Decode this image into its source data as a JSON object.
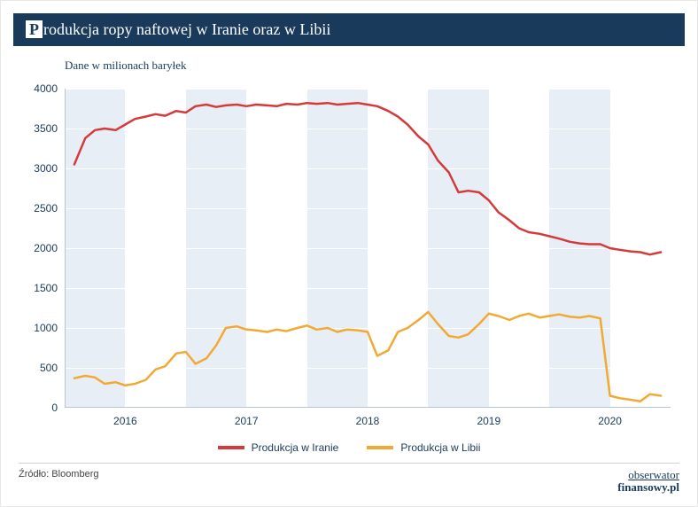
{
  "title": "Produkcja ropy naftowej w Iranie oraz w Libii",
  "subtitle": "Dane w milionach baryłek",
  "source_label": "Źródło: Bloomberg",
  "brand": {
    "line1": "obserwator",
    "line2": "finansowy.pl"
  },
  "chart": {
    "type": "line",
    "background_color": "#ffffff",
    "band_color": "#e8eef5",
    "grid_color": "#ffffff",
    "axis_color": "#b8c5d6",
    "text_color": "#1a3a5c",
    "title_fontsize": 18,
    "label_fontsize": 12,
    "line_width": 2.5,
    "ylim": [
      0,
      4000
    ],
    "ytick_step": 500,
    "xlim": [
      2015.5,
      2020.5
    ],
    "xticks": [
      2016,
      2017,
      2018,
      2019,
      2020
    ],
    "bands": [
      {
        "start": 2015.5,
        "end": 2016.0
      },
      {
        "start": 2016.5,
        "end": 2017.0
      },
      {
        "start": 2017.5,
        "end": 2018.0
      },
      {
        "start": 2018.5,
        "end": 2019.0
      },
      {
        "start": 2019.5,
        "end": 2020.0
      }
    ],
    "series": [
      {
        "name": "Produkcja w Iranie",
        "color": "#d43a3a",
        "x": [
          2015.58,
          2015.67,
          2015.75,
          2015.83,
          2015.92,
          2016.0,
          2016.08,
          2016.17,
          2016.25,
          2016.33,
          2016.42,
          2016.5,
          2016.58,
          2016.67,
          2016.75,
          2016.83,
          2016.92,
          2017.0,
          2017.08,
          2017.17,
          2017.25,
          2017.33,
          2017.42,
          2017.5,
          2017.58,
          2017.67,
          2017.75,
          2017.83,
          2017.92,
          2018.0,
          2018.08,
          2018.17,
          2018.25,
          2018.33,
          2018.42,
          2018.5,
          2018.58,
          2018.67,
          2018.75,
          2018.83,
          2018.92,
          2019.0,
          2019.08,
          2019.17,
          2019.25,
          2019.33,
          2019.42,
          2019.5,
          2019.58,
          2019.67,
          2019.75,
          2019.83,
          2019.92,
          2020.0,
          2020.08,
          2020.17,
          2020.25,
          2020.33,
          2020.42
        ],
        "y": [
          3050,
          3380,
          3480,
          3500,
          3480,
          3550,
          3620,
          3650,
          3680,
          3660,
          3720,
          3700,
          3780,
          3800,
          3770,
          3790,
          3800,
          3780,
          3800,
          3790,
          3780,
          3810,
          3800,
          3820,
          3810,
          3820,
          3800,
          3810,
          3820,
          3800,
          3780,
          3720,
          3650,
          3550,
          3400,
          3300,
          3100,
          2950,
          2700,
          2720,
          2700,
          2600,
          2450,
          2350,
          2250,
          2200,
          2180,
          2150,
          2120,
          2080,
          2060,
          2050,
          2050,
          2000,
          1980,
          1960,
          1950,
          1920,
          1950
        ]
      },
      {
        "name": "Produkcja w Libii",
        "color": "#f2a934",
        "x": [
          2015.58,
          2015.67,
          2015.75,
          2015.83,
          2015.92,
          2016.0,
          2016.08,
          2016.17,
          2016.25,
          2016.33,
          2016.42,
          2016.5,
          2016.58,
          2016.67,
          2016.75,
          2016.83,
          2016.92,
          2017.0,
          2017.08,
          2017.17,
          2017.25,
          2017.33,
          2017.42,
          2017.5,
          2017.58,
          2017.67,
          2017.75,
          2017.83,
          2017.92,
          2018.0,
          2018.08,
          2018.17,
          2018.25,
          2018.33,
          2018.42,
          2018.5,
          2018.58,
          2018.67,
          2018.75,
          2018.83,
          2018.92,
          2019.0,
          2019.08,
          2019.17,
          2019.25,
          2019.33,
          2019.42,
          2019.5,
          2019.58,
          2019.67,
          2019.75,
          2019.83,
          2019.92,
          2020.0,
          2020.08,
          2020.17,
          2020.25,
          2020.33,
          2020.42
        ],
        "y": [
          370,
          400,
          380,
          300,
          320,
          280,
          300,
          350,
          480,
          520,
          680,
          700,
          550,
          620,
          780,
          1000,
          1020,
          980,
          970,
          950,
          980,
          960,
          1000,
          1030,
          980,
          1000,
          950,
          980,
          970,
          950,
          650,
          720,
          950,
          1000,
          1100,
          1200,
          1050,
          900,
          880,
          920,
          1050,
          1180,
          1150,
          1100,
          1150,
          1180,
          1130,
          1150,
          1170,
          1140,
          1130,
          1150,
          1120,
          150,
          120,
          100,
          80,
          170,
          150
        ]
      }
    ]
  }
}
